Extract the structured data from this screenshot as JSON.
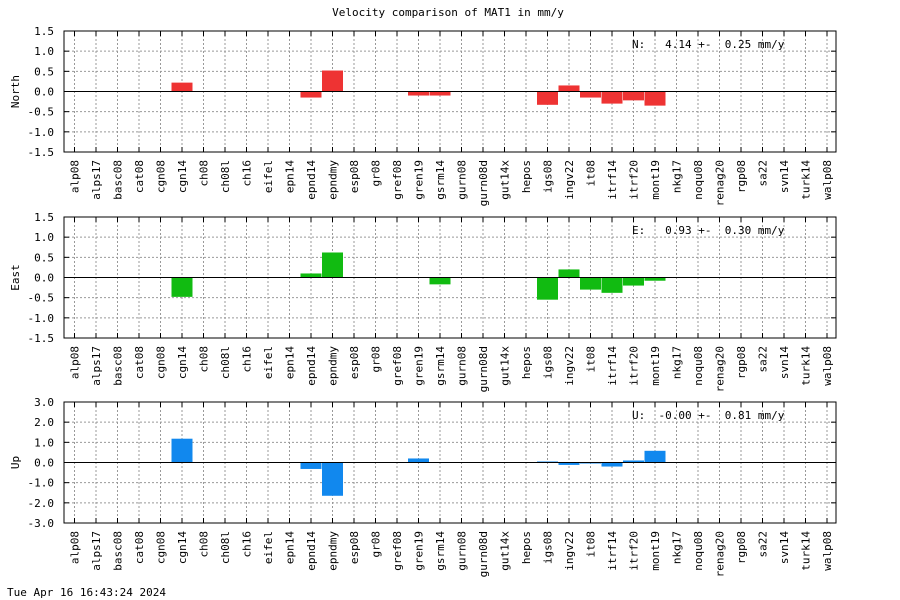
{
  "chart_data": {
    "type": "bar",
    "title": "Velocity comparison of MAT1 in mm/y",
    "categories": [
      "alp08",
      "alps17",
      "basc08",
      "cat08",
      "cgn08",
      "cgn14",
      "ch08",
      "ch08l",
      "ch16",
      "eifel",
      "epn14",
      "epnd14",
      "epndmy",
      "esp08",
      "gr08",
      "gref08",
      "gren19",
      "gsrm14",
      "gurn08",
      "gurn08d",
      "gut14x",
      "hepos",
      "igs08",
      "ingv22",
      "it08",
      "itrf14",
      "itrf20",
      "mont19",
      "nkg17",
      "noqu08",
      "renag20",
      "rgp08",
      "sa22",
      "svn14",
      "turk14",
      "walp08"
    ],
    "grid": true,
    "panels": [
      {
        "ylabel": "North",
        "ylim": [
          -1.5,
          1.5
        ],
        "yticks": [
          "1.5",
          "1.0",
          "0.5",
          "0.0",
          "-0.5",
          "-1.0",
          "-1.5"
        ],
        "color": "#ee3333",
        "annotation": "N:   4.14 +-  0.25 mm/y",
        "values": [
          null,
          null,
          null,
          null,
          null,
          0.22,
          null,
          null,
          null,
          null,
          null,
          -0.15,
          0.52,
          null,
          null,
          null,
          -0.1,
          -0.1,
          null,
          null,
          null,
          null,
          -0.33,
          0.15,
          -0.15,
          -0.3,
          -0.22,
          -0.35,
          null,
          null,
          null,
          null,
          null,
          null,
          null,
          null
        ]
      },
      {
        "ylabel": "East",
        "ylim": [
          -1.5,
          1.5
        ],
        "yticks": [
          "1.5",
          "1.0",
          "0.5",
          "0.0",
          "-0.5",
          "-1.0",
          "-1.5"
        ],
        "color": "#11bb11",
        "annotation": "E:   0.93 +-  0.30 mm/y",
        "values": [
          null,
          null,
          null,
          null,
          null,
          -0.48,
          null,
          null,
          null,
          null,
          null,
          0.1,
          0.62,
          null,
          null,
          null,
          null,
          -0.17,
          null,
          null,
          null,
          null,
          -0.55,
          0.2,
          -0.3,
          -0.38,
          -0.2,
          -0.08,
          null,
          null,
          null,
          null,
          null,
          null,
          null,
          null
        ]
      },
      {
        "ylabel": "Up",
        "ylim": [
          -3.0,
          3.0
        ],
        "yticks": [
          "3.0",
          "2.0",
          "1.0",
          "0.0",
          "-1.0",
          "-2.0",
          "-3.0"
        ],
        "color": "#1188ee",
        "annotation": "U:  -0.00 +-  0.81 mm/y",
        "values": [
          null,
          null,
          null,
          null,
          null,
          1.18,
          null,
          null,
          null,
          null,
          null,
          -0.32,
          -1.65,
          null,
          null,
          null,
          0.2,
          null,
          null,
          null,
          null,
          null,
          0.05,
          -0.12,
          -0.05,
          -0.2,
          0.1,
          0.58,
          null,
          null,
          null,
          null,
          null,
          null,
          null,
          null
        ]
      }
    ]
  },
  "footer": {
    "timestamp": "Tue Apr 16 16:43:24 2024"
  }
}
